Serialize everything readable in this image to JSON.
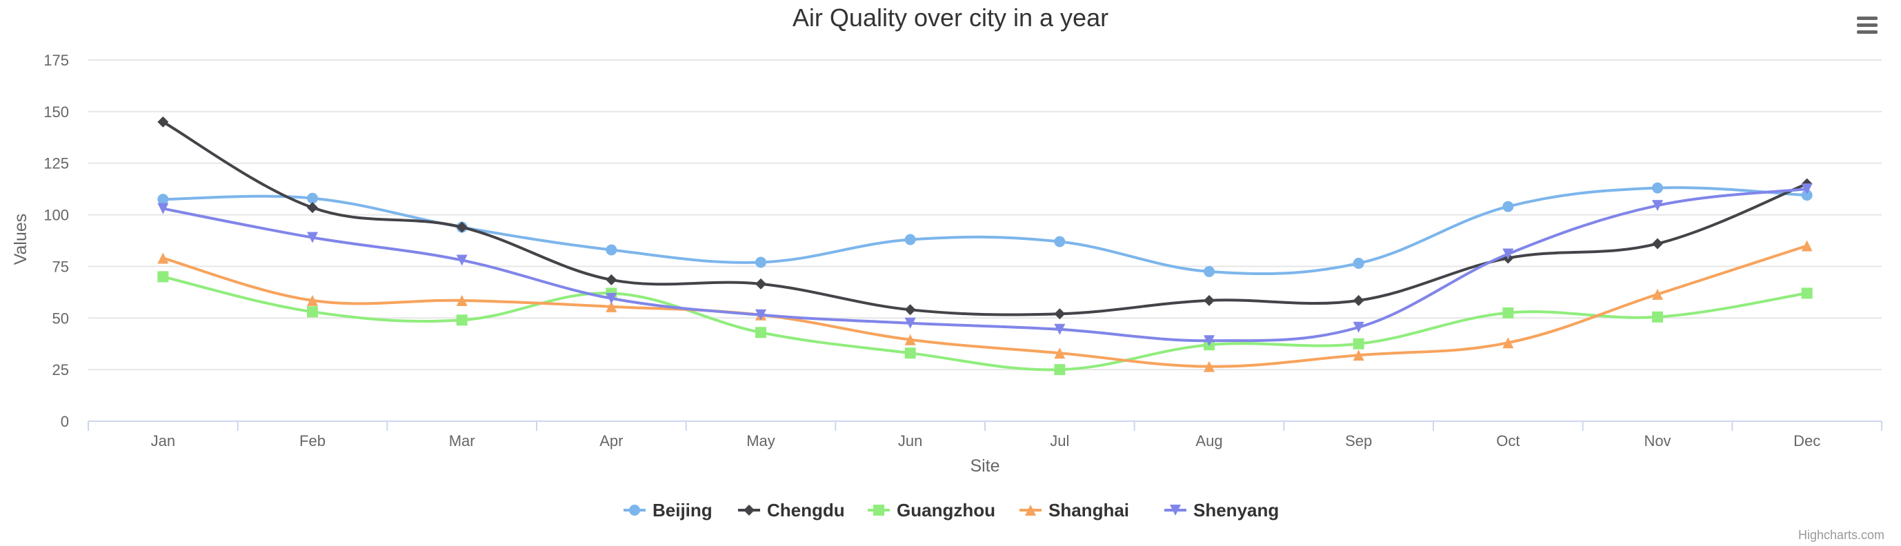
{
  "chart_data": {
    "type": "line",
    "title": "Air Quality over city in a year",
    "xlabel": "Site",
    "ylabel": "Values",
    "categories": [
      "Jan",
      "Feb",
      "Mar",
      "Apr",
      "May",
      "Jun",
      "Jul",
      "Aug",
      "Sep",
      "Oct",
      "Nov",
      "Dec"
    ],
    "ylim": [
      0,
      175
    ],
    "yticks": [
      0,
      25,
      50,
      75,
      100,
      125,
      150,
      175
    ],
    "grid": true,
    "legend_position": "bottom",
    "series": [
      {
        "name": "Beijing",
        "color": "#7cb5ec",
        "marker": "circle",
        "values": [
          107.5,
          108,
          94,
          83,
          77,
          88,
          87,
          72.5,
          76.5,
          104,
          113,
          109.5
        ]
      },
      {
        "name": "Chengdu",
        "color": "#434348",
        "marker": "diamond",
        "values": [
          145,
          103.5,
          94,
          68.5,
          66.5,
          54,
          52,
          58.5,
          58.5,
          79,
          86,
          115
        ]
      },
      {
        "name": "Guangzhou",
        "color": "#90ed7d",
        "marker": "square",
        "values": [
          70,
          53,
          49,
          62,
          43,
          33,
          25,
          37,
          37.5,
          52.5,
          50.5,
          62
        ]
      },
      {
        "name": "Shanghai",
        "color": "#f7a35c",
        "marker": "triangle",
        "values": [
          79,
          58.5,
          58.5,
          55.5,
          51.5,
          39.5,
          33,
          26.5,
          32,
          38,
          61.5,
          85
        ]
      },
      {
        "name": "Shenyang",
        "color": "#8085e9",
        "marker": "triangle-down",
        "values": [
          103,
          89,
          78,
          59.5,
          51.5,
          47.5,
          44.5,
          39,
          45.5,
          81,
          104.5,
          112.5
        ]
      }
    ]
  },
  "toolbar": {
    "menu_icon": "hamburger-menu-icon"
  },
  "credits": "Highcharts.com"
}
